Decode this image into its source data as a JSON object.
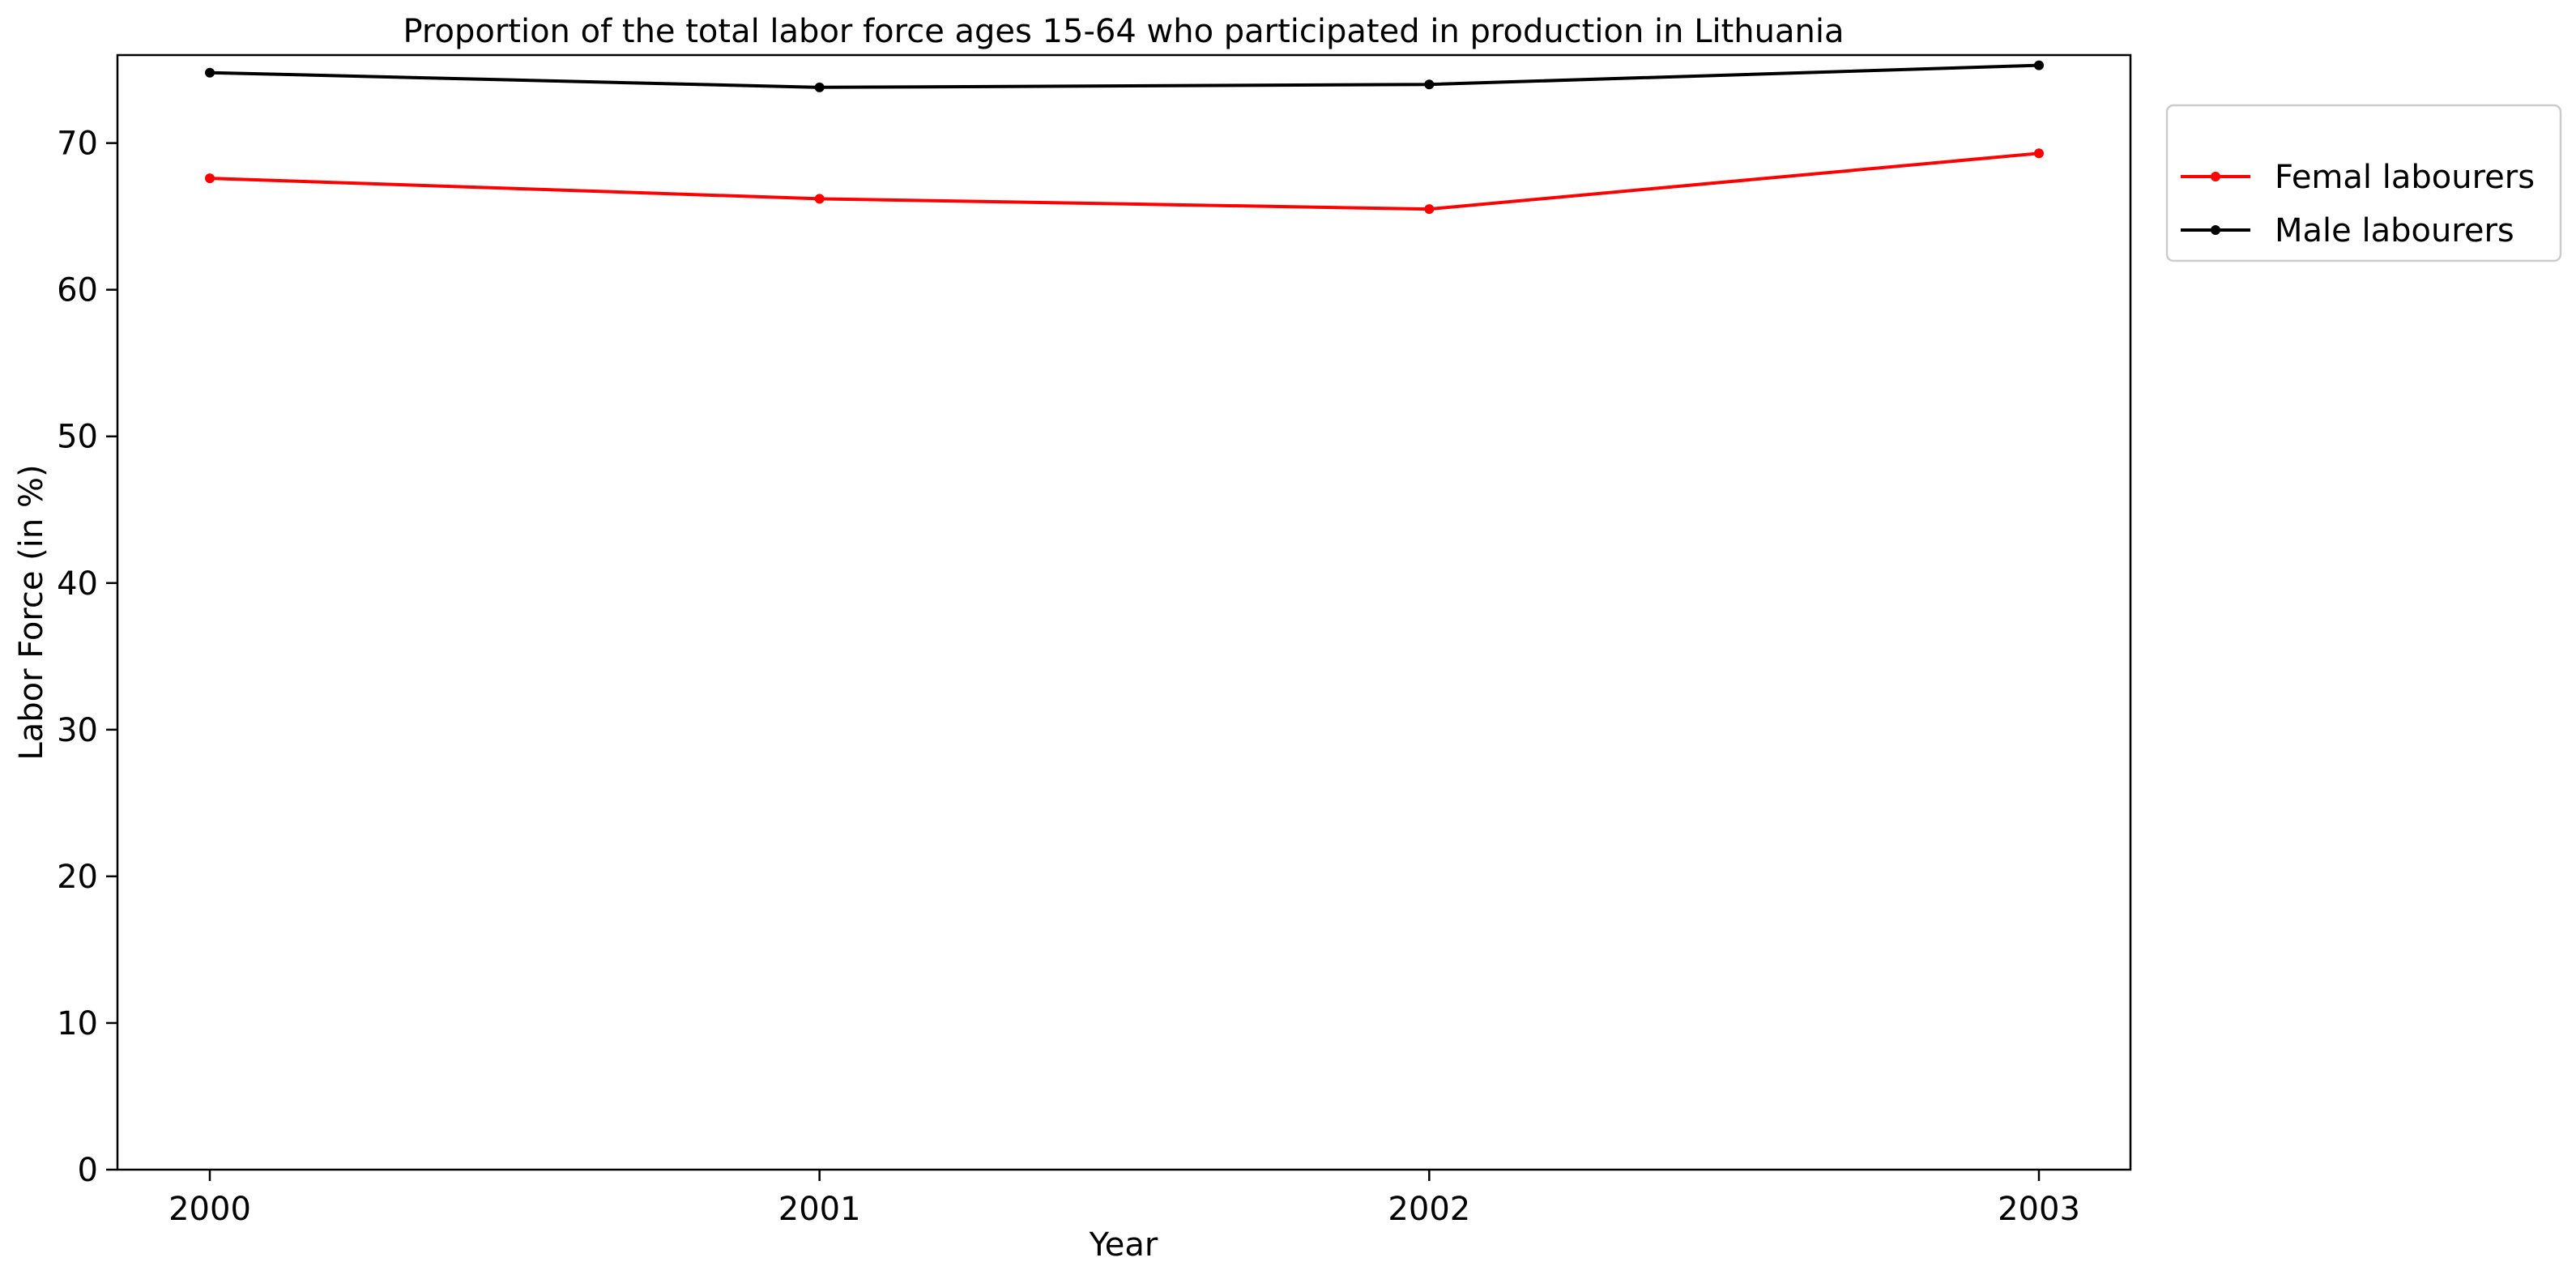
{
  "chart_data": {
    "type": "line",
    "title": "Proportion of the total labor force ages 15-64 who participated in production in Lithuania",
    "xlabel": "Year",
    "ylabel": "Labor Force (in %)",
    "x": [
      "2000",
      "2001",
      "2002",
      "2003"
    ],
    "ylim": [
      0,
      76
    ],
    "yticks": [
      0,
      10,
      20,
      30,
      40,
      50,
      60,
      70
    ],
    "grid": false,
    "legend_position": "upper right, outside plot area",
    "series": [
      {
        "name": "Femal labourers",
        "color": "#ff0000",
        "values": [
          67.6,
          66.2,
          65.5,
          69.3
        ]
      },
      {
        "name": "Male labourers",
        "color": "#000000",
        "values": [
          74.8,
          73.8,
          74.0,
          75.3
        ]
      }
    ]
  }
}
